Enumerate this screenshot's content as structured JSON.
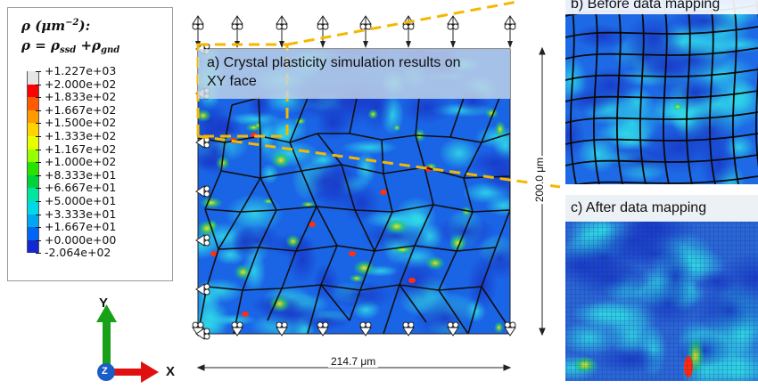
{
  "legend": {
    "title_line1": "ρ (μm",
    "title_line1_sup": "−2",
    "title_line1_tail": "):",
    "title_line2_a": "ρ = ρ",
    "title_line2_sub1": "ssd",
    "title_line2_b": " +ρ",
    "title_line2_sub2": "gnd",
    "levels": [
      {
        "label": "+1.227e+03",
        "color": "#e6e6e6"
      },
      {
        "label": "+2.000e+02",
        "color": "#ff0000"
      },
      {
        "label": "+1.833e+02",
        "color": "#ff5a00"
      },
      {
        "label": "+1.667e+02",
        "color": "#ff9a00"
      },
      {
        "label": "+1.500e+02",
        "color": "#ffd400"
      },
      {
        "label": "+1.333e+02",
        "color": "#e8ff00"
      },
      {
        "label": "+1.167e+02",
        "color": "#96ff00"
      },
      {
        "label": "+1.000e+02",
        "color": "#28e200"
      },
      {
        "label": "+8.333e+01",
        "color": "#00d23a"
      },
      {
        "label": "+6.667e+01",
        "color": "#00e6a0"
      },
      {
        "label": "+5.000e+01",
        "color": "#00d8e6"
      },
      {
        "label": "+3.333e+01",
        "color": "#00a6f0"
      },
      {
        "label": "+1.667e+01",
        "color": "#0064f5"
      },
      {
        "label": "+0.000e+00",
        "color": "#1428d2"
      },
      {
        "label": "-2.064e+02",
        "color": "#202020"
      }
    ]
  },
  "panel_a": {
    "title_line1": "a) Crystal plasticity simulation results on",
    "title_line2": "XY face",
    "width_label": "214.7 μm",
    "height_label": "200.0 μm"
  },
  "panel_b": {
    "title": "b) Before data mapping"
  },
  "panel_c": {
    "title": "c) After data mapping"
  },
  "triad": {
    "y_label": "Y",
    "x_label": "X",
    "z_label": "Z"
  },
  "colors": {
    "accent_dashed": "#f5b800",
    "axis_x": "#e01010",
    "axis_y": "#18a018",
    "axis_z": "#1a5cc8"
  }
}
